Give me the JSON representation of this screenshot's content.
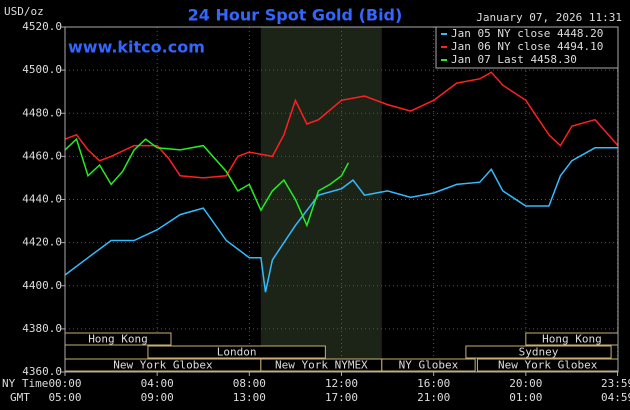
{
  "chart_data": {
    "type": "line",
    "title": "24 Hour Spot Gold (Bid)",
    "timestamp": "January 07, 2026 11:31",
    "website": "www.kitco.com",
    "y_label": "USD/oz",
    "x_row_labels": [
      "NY Time",
      "GMT"
    ],
    "xlim": [
      0,
      24
    ],
    "ylim": [
      4360,
      4520
    ],
    "xticks": [
      {
        "value": 0,
        "label": "00:00"
      },
      {
        "value": 4,
        "label": "04:00"
      },
      {
        "value": 8,
        "label": "08:00"
      },
      {
        "value": 12,
        "label": "12:00"
      },
      {
        "value": 16,
        "label": "16:00"
      },
      {
        "value": 20,
        "label": "20:00"
      },
      {
        "value": 23.98,
        "label": "23:59"
      }
    ],
    "gmt_labels": [
      "05:00",
      "09:00",
      "13:00",
      "17:00",
      "21:00",
      "01:00",
      "04:59"
    ],
    "yticks": [
      {
        "value": 4360,
        "label": "4360.0"
      },
      {
        "value": 4380,
        "label": "4380.0"
      },
      {
        "value": 4400,
        "label": "4400.0"
      },
      {
        "value": 4420,
        "label": "4420.0"
      },
      {
        "value": 4440,
        "label": "4440.0"
      },
      {
        "value": 4460,
        "label": "4460.0"
      },
      {
        "value": 4480,
        "label": "4480.0"
      },
      {
        "value": 4500,
        "label": "4500.0"
      },
      {
        "value": 4520,
        "label": "4520.0"
      }
    ],
    "grid": true,
    "session_shade": [
      8.5,
      13.75
    ],
    "session_rows": [
      [
        {
          "name": "Hong Kong",
          "start": 0,
          "end": 4.6
        },
        {
          "name": "Hong Kong",
          "start": 20,
          "end": 24
        }
      ],
      [
        {
          "name": "London",
          "start": 3.6,
          "end": 11.3
        },
        {
          "name": "Sydney",
          "start": 17.4,
          "end": 23.7
        }
      ],
      [
        {
          "name": "New York Globex",
          "start": 0,
          "end": 8.5
        },
        {
          "name": "New York NYMEX",
          "start": 8.5,
          "end": 13.75
        },
        {
          "name": "NY Globex",
          "start": 13.75,
          "end": 17.8
        },
        {
          "name": "New York Globex",
          "start": 17.9,
          "end": 24
        }
      ]
    ],
    "series": [
      {
        "name": "Jan 05 NY close 4448.20",
        "color": "#33bbff",
        "x": [
          0,
          1,
          2,
          3,
          4,
          5,
          6,
          7,
          8,
          8.5,
          8.7,
          9,
          10,
          11,
          12,
          12.5,
          13,
          14,
          15,
          16,
          17,
          18,
          18.5,
          19,
          20,
          21,
          21.5,
          22,
          23,
          24
        ],
        "values": [
          4405,
          4413,
          4421,
          4421,
          4426,
          4433,
          4436,
          4421,
          4413,
          4413,
          4397,
          4412,
          4428,
          4442,
          4445,
          4449,
          4442,
          4444,
          4441,
          4443,
          4447,
          4448,
          4454,
          4444,
          4437,
          4437,
          4451,
          4458,
          4464,
          4464
        ]
      },
      {
        "name": "Jan 06 NY close 4494.10",
        "color": "#ff2020",
        "x": [
          0,
          0.5,
          1,
          1.5,
          2,
          3,
          4,
          4.5,
          5,
          6,
          7,
          7.5,
          8,
          9,
          9.5,
          10,
          10.5,
          11,
          12,
          13,
          14,
          15,
          16,
          17,
          18,
          18.5,
          19,
          20,
          21,
          21.5,
          22,
          23,
          24
        ],
        "values": [
          4468,
          4470,
          4463,
          4458,
          4460,
          4465,
          4465,
          4459,
          4451,
          4450,
          4451,
          4460,
          4462,
          4460,
          4470,
          4486,
          4475,
          4477,
          4486,
          4488,
          4484,
          4481,
          4486,
          4494,
          4496,
          4499,
          4493,
          4486,
          4470,
          4465,
          4474,
          4477,
          4465
        ]
      },
      {
        "name": "Jan 07 Last 4458.30",
        "color": "#22ee22",
        "x": [
          0,
          0.5,
          1,
          1.5,
          2,
          2.5,
          3,
          3.5,
          4,
          5,
          6,
          7,
          7.5,
          8,
          8.5,
          9,
          9.5,
          10,
          10.5,
          11,
          11.5,
          12,
          12.3
        ],
        "values": [
          4463,
          4468,
          4451,
          4456,
          4447,
          4453,
          4463,
          4468,
          4464,
          4463,
          4465,
          4453,
          4444,
          4447,
          4435,
          4444,
          4449,
          4440,
          4428,
          4444,
          4447,
          4451,
          4457
        ]
      }
    ]
  }
}
